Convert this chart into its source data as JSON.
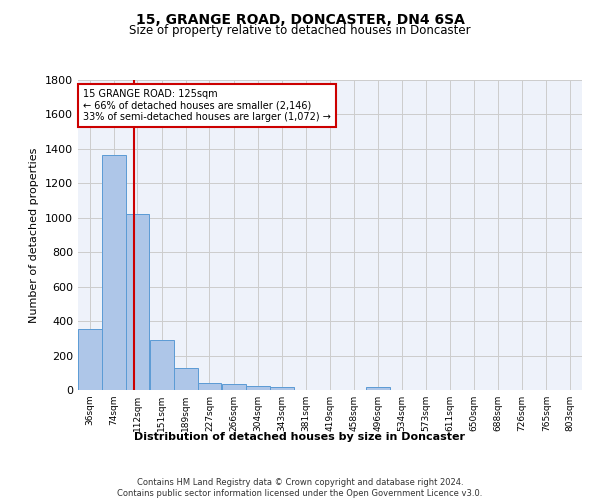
{
  "title1": "15, GRANGE ROAD, DONCASTER, DN4 6SA",
  "title2": "Size of property relative to detached houses in Doncaster",
  "xlabel": "Distribution of detached houses by size in Doncaster",
  "ylabel": "Number of detached properties",
  "footnote": "Contains HM Land Registry data © Crown copyright and database right 2024.\nContains public sector information licensed under the Open Government Licence v3.0.",
  "bin_labels": [
    "36sqm",
    "74sqm",
    "112sqm",
    "151sqm",
    "189sqm",
    "227sqm",
    "266sqm",
    "304sqm",
    "343sqm",
    "381sqm",
    "419sqm",
    "458sqm",
    "496sqm",
    "534sqm",
    "573sqm",
    "611sqm",
    "650sqm",
    "688sqm",
    "726sqm",
    "765sqm",
    "803sqm"
  ],
  "bar_values": [
    355,
    1365,
    1020,
    290,
    125,
    42,
    33,
    22,
    16,
    0,
    0,
    0,
    20,
    0,
    0,
    0,
    0,
    0,
    0,
    0,
    0
  ],
  "bar_color": "#aec6e8",
  "bar_edge_color": "#5b9bd5",
  "property_line_x": 125,
  "property_line_label": "15 GRANGE ROAD: 125sqm",
  "annotation_line1": "← 66% of detached houses are smaller (2,146)",
  "annotation_line2": "33% of semi-detached houses are larger (1,072) →",
  "annotation_box_color": "#ffffff",
  "annotation_box_edge_color": "#cc0000",
  "vline_color": "#cc0000",
  "ylim": [
    0,
    1800
  ],
  "yticks": [
    0,
    200,
    400,
    600,
    800,
    1000,
    1200,
    1400,
    1600,
    1800
  ],
  "grid_color": "#cccccc",
  "bg_color": "#eef2fa",
  "bin_width": 38,
  "bin_starts": [
    36,
    74,
    112,
    151,
    189,
    227,
    266,
    304,
    343,
    381,
    419,
    458,
    496,
    534,
    573,
    611,
    650,
    688,
    726,
    765,
    803
  ]
}
